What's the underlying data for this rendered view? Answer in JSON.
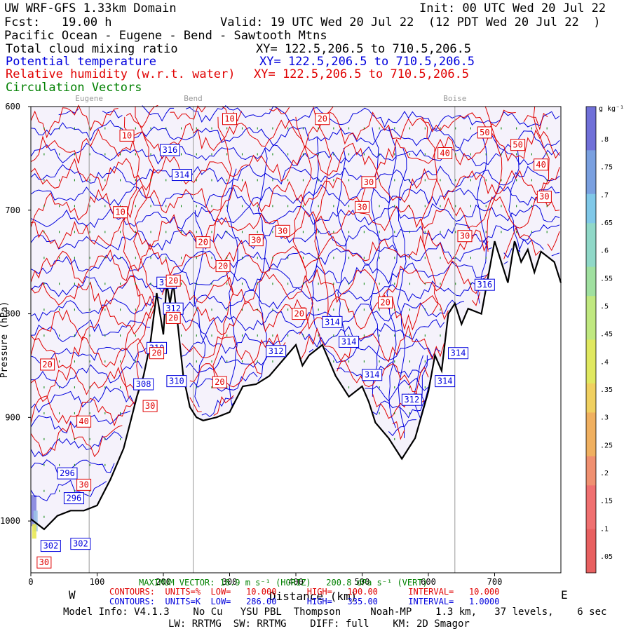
{
  "header": {
    "model": "UW WRF-GFS 1.33km Domain",
    "init": "Init: 00 UTC Wed 20 Jul 22",
    "fcst": "Fcst:   19.00 h",
    "valid": "Valid: 19 UTC Wed 20 Jul 22  (12 PDT Wed 20 Jul 22  )",
    "region": "Pacific Ocean - Eugene - Bend - Sawtooth Mtns",
    "field1": "Total cloud mixing ratio",
    "field1_xy": "XY= 122.5,206.5 to 710.5,206.5",
    "field2": "Potential temperature",
    "field2_xy": "XY= 122.5,206.5 to 710.5,206.5",
    "field3": "Relative humidity (w.r.t. water)",
    "field3_xy": "XY= 122.5,206.5 to 710.5,206.5",
    "field4": "Circulation Vectors"
  },
  "colors": {
    "black": "#000000",
    "blue": "#0000dd",
    "red": "#e00000",
    "green": "#008000",
    "gray": "#999999",
    "fill": "#f5f2fb"
  },
  "footer": {
    "west": "W",
    "east": "E",
    "xlabel": "Distance (km)",
    "max_vector": "MAXIMUM VECTOR: 16.9 m s⁻¹ (HORIZ)   200.8 dPa s⁻¹ (VERT)",
    "contours_rh": "CONTOURS:  UNITS=%  LOW=   10.000      HIGH=   100.00      INTERVAL=   10.000",
    "contours_theta": "CONTOURS:  UNITS=K  LOW=   286.00      HIGH=   335.00      INTERVAL=   1.0000",
    "model_info": "Model Info: V4.1.3    No Cu   YSU PBL  Thompson     Noah-MP    1.3 km,   37 levels,    6 sec",
    "physics": "LW: RRTMG  SW: RRTMG    DIFF: full    KM: 2D Smagor"
  },
  "chart_data": {
    "type": "cross-section",
    "title": "Total cloud mixing ratio / Potential temperature / Relative humidity",
    "xlabel": "Distance (km)",
    "ylabel": "Pressure (hPa)",
    "xlim": [
      0,
      800
    ],
    "ylim": [
      1050,
      600
    ],
    "x_ticks": [
      0,
      100,
      200,
      300,
      400,
      500,
      600,
      700
    ],
    "y_ticks": [
      600,
      700,
      800,
      900,
      1000
    ],
    "y_tick_labels": [
      "600",
      "700",
      "800",
      "900",
      "1000"
    ],
    "x_tick_labels": [
      "0",
      "100",
      "200",
      "300",
      "400",
      "500",
      "600",
      "700"
    ],
    "locations": [
      {
        "name": "Eugene",
        "x": 88
      },
      {
        "name": "Bend",
        "x": 245
      },
      {
        "name": "Boise",
        "x": 640
      }
    ],
    "terrain": {
      "x": [
        0,
        20,
        40,
        60,
        80,
        100,
        120,
        140,
        150,
        160,
        170,
        180,
        190,
        200,
        205,
        210,
        215,
        220,
        230,
        240,
        250,
        260,
        280,
        300,
        320,
        340,
        360,
        380,
        400,
        410,
        420,
        440,
        460,
        480,
        500,
        510,
        520,
        540,
        560,
        570,
        580,
        600,
        610,
        620,
        630,
        640,
        650,
        660,
        680,
        700,
        720,
        730,
        740,
        750,
        760,
        770,
        780,
        790,
        800
      ],
      "p": [
        998,
        1008,
        995,
        990,
        990,
        985,
        960,
        930,
        905,
        880,
        860,
        830,
        780,
        820,
        770,
        790,
        770,
        800,
        860,
        890,
        900,
        903,
        900,
        895,
        870,
        868,
        860,
        845,
        830,
        850,
        840,
        830,
        860,
        880,
        870,
        885,
        905,
        920,
        940,
        930,
        920,
        875,
        840,
        855,
        800,
        790,
        810,
        795,
        800,
        730,
        770,
        730,
        750,
        738,
        760,
        740,
        745,
        750,
        770
      ]
    },
    "cloud_colorbar": {
      "label": "g kg⁻¹",
      "ticks": [
        ".8",
        ".75",
        ".7",
        ".65",
        ".6",
        ".55",
        ".5",
        ".45",
        ".4",
        ".35",
        ".3",
        ".25",
        ".2",
        ".15",
        ".1",
        ".05"
      ]
    },
    "theta_labels": [
      {
        "text": "316",
        "x": 210,
        "p": 642
      },
      {
        "text": "314",
        "x": 228,
        "p": 666
      },
      {
        "text": "312",
        "x": 205,
        "p": 770
      },
      {
        "text": "312",
        "x": 215,
        "p": 795
      },
      {
        "text": "310",
        "x": 190,
        "p": 833
      },
      {
        "text": "308",
        "x": 170,
        "p": 868
      },
      {
        "text": "310",
        "x": 220,
        "p": 865
      },
      {
        "text": "312",
        "x": 370,
        "p": 836
      },
      {
        "text": "314",
        "x": 455,
        "p": 808
      },
      {
        "text": "314",
        "x": 480,
        "p": 827
      },
      {
        "text": "314",
        "x": 515,
        "p": 859
      },
      {
        "text": "312",
        "x": 575,
        "p": 883
      },
      {
        "text": "314",
        "x": 625,
        "p": 865
      },
      {
        "text": "314",
        "x": 645,
        "p": 838
      },
      {
        "text": "316",
        "x": 685,
        "p": 772
      },
      {
        "text": "296",
        "x": 55,
        "p": 954
      },
      {
        "text": "296",
        "x": 65,
        "p": 978
      },
      {
        "text": "302",
        "x": 30,
        "p": 1024
      },
      {
        "text": "302",
        "x": 75,
        "p": 1022
      }
    ],
    "rh_labels": [
      {
        "text": "10",
        "x": 145,
        "p": 628
      },
      {
        "text": "10",
        "x": 135,
        "p": 702
      },
      {
        "text": "10",
        "x": 300,
        "p": 612
      },
      {
        "text": "20",
        "x": 440,
        "p": 612
      },
      {
        "text": "50",
        "x": 685,
        "p": 625
      },
      {
        "text": "40",
        "x": 625,
        "p": 645
      },
      {
        "text": "50",
        "x": 735,
        "p": 637
      },
      {
        "text": "40",
        "x": 770,
        "p": 656
      },
      {
        "text": "30",
        "x": 510,
        "p": 673
      },
      {
        "text": "30",
        "x": 500,
        "p": 697
      },
      {
        "text": "30",
        "x": 775,
        "p": 687
      },
      {
        "text": "30",
        "x": 380,
        "p": 720
      },
      {
        "text": "30",
        "x": 340,
        "p": 729
      },
      {
        "text": "20",
        "x": 260,
        "p": 731
      },
      {
        "text": "30",
        "x": 655,
        "p": 725
      },
      {
        "text": "20",
        "x": 290,
        "p": 754
      },
      {
        "text": "20",
        "x": 215,
        "p": 768
      },
      {
        "text": "20",
        "x": 535,
        "p": 789
      },
      {
        "text": "20",
        "x": 405,
        "p": 800
      },
      {
        "text": "20",
        "x": 215,
        "p": 804
      },
      {
        "text": "20",
        "x": 190,
        "p": 838
      },
      {
        "text": "20",
        "x": 25,
        "p": 849
      },
      {
        "text": "20",
        "x": 285,
        "p": 866
      },
      {
        "text": "30",
        "x": 180,
        "p": 889
      },
      {
        "text": "40",
        "x": 80,
        "p": 904
      },
      {
        "text": "30",
        "x": 80,
        "p": 965
      },
      {
        "text": "30",
        "x": 20,
        "p": 1040
      }
    ]
  }
}
